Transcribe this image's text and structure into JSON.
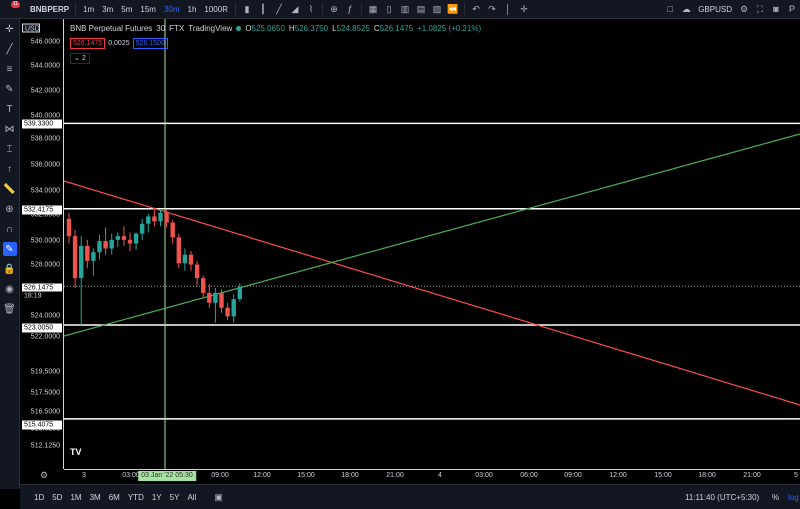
{
  "topbar": {
    "symbol": "BNBPERP",
    "notification_count": "11",
    "timeframes": [
      "1m",
      "3m",
      "5m",
      "15m",
      "30m",
      "1h",
      "1000R"
    ],
    "active_timeframe": "30m",
    "compare_symbol": "GBPUSD"
  },
  "legend": {
    "title": "BNB Perpetual Futures",
    "interval": "30",
    "exchange": "FTX",
    "source": "TradingView",
    "o_key": "O",
    "o_val": "525.0650",
    "h_key": "H",
    "h_val": "526.3750",
    "l_key": "L",
    "l_val": "524.8525",
    "c_key": "C",
    "c_val": "526.1475",
    "change": "+1.0825 (+0.21%)",
    "bid": "526.1475",
    "spread": "0.0025",
    "ask": "526.1500",
    "collapse": "2"
  },
  "currency": "USD",
  "y_ticks": [
    "546.0000",
    "544.0000",
    "542.0000",
    "540.0000",
    "538.0000",
    "536.0000",
    "534.0000",
    "532.0000",
    "530.0000",
    "528.0000",
    "526.0000",
    "524.0000",
    "522.0000",
    "519.5000",
    "517.5000",
    "516.5000",
    "513.6250",
    "512.1250"
  ],
  "y_boxes": {
    "hline1": "539.3300",
    "hline2": "532.4175",
    "price": "526.1475",
    "countdown": "18:19",
    "hline3": "523.0050",
    "hline4": "515.4075"
  },
  "x_ticks": [
    "3",
    "03:00",
    "09:00",
    "12:00",
    "15:00",
    "18:00",
    "21:00",
    "4",
    "03:00",
    "06:00",
    "09:00",
    "12:00",
    "15:00",
    "18:00",
    "21:00",
    "5"
  ],
  "crosshair_label": "03 Jan '22   05:30",
  "bottombar": {
    "ranges": [
      "1D",
      "5D",
      "1M",
      "3M",
      "6M",
      "YTD",
      "1Y",
      "5Y",
      "All"
    ],
    "clock": "11:11:40 (UTC+5:30)",
    "pct": "%",
    "log": "log"
  },
  "colors": {
    "up": "#26a69a",
    "down": "#ef5350",
    "trend_red": "#ff4d4d",
    "trend_green": "#4caf50",
    "crosshair": "#a6e3a1",
    "accent": "#2962ff"
  },
  "chart_data": {
    "type": "candlestick",
    "x_unit": "30-minute bars",
    "candles": [
      {
        "o": 531.6,
        "h": 532.1,
        "l": 529.6,
        "c": 530.2
      },
      {
        "o": 530.2,
        "h": 530.7,
        "l": 526.0,
        "c": 526.8
      },
      {
        "o": 526.8,
        "h": 530.2,
        "l": 523.0,
        "c": 529.4
      },
      {
        "o": 529.4,
        "h": 529.9,
        "l": 527.6,
        "c": 528.2
      },
      {
        "o": 528.2,
        "h": 529.2,
        "l": 527.0,
        "c": 528.9
      },
      {
        "o": 528.9,
        "h": 530.3,
        "l": 528.3,
        "c": 529.8
      },
      {
        "o": 529.8,
        "h": 530.9,
        "l": 528.7,
        "c": 529.2
      },
      {
        "o": 529.2,
        "h": 530.4,
        "l": 528.7,
        "c": 529.9
      },
      {
        "o": 529.9,
        "h": 530.5,
        "l": 529.3,
        "c": 530.2
      },
      {
        "o": 530.2,
        "h": 531.0,
        "l": 529.4,
        "c": 529.9
      },
      {
        "o": 529.9,
        "h": 530.5,
        "l": 529.0,
        "c": 529.6
      },
      {
        "o": 529.6,
        "h": 530.5,
        "l": 529.1,
        "c": 530.4
      },
      {
        "o": 530.4,
        "h": 531.6,
        "l": 529.9,
        "c": 531.2
      },
      {
        "o": 531.2,
        "h": 532.0,
        "l": 530.5,
        "c": 531.8
      },
      {
        "o": 531.8,
        "h": 532.3,
        "l": 531.0,
        "c": 531.4
      },
      {
        "o": 531.4,
        "h": 532.4,
        "l": 531.0,
        "c": 532.1
      },
      {
        "o": 532.1,
        "h": 532.4,
        "l": 530.9,
        "c": 531.3
      },
      {
        "o": 531.3,
        "h": 531.5,
        "l": 529.6,
        "c": 530.1
      },
      {
        "o": 530.1,
        "h": 530.4,
        "l": 527.6,
        "c": 528.0
      },
      {
        "o": 528.0,
        "h": 529.2,
        "l": 527.4,
        "c": 528.7
      },
      {
        "o": 528.7,
        "h": 529.0,
        "l": 527.4,
        "c": 527.9
      },
      {
        "o": 527.9,
        "h": 528.2,
        "l": 526.2,
        "c": 526.8
      },
      {
        "o": 526.8,
        "h": 527.0,
        "l": 525.2,
        "c": 525.6
      },
      {
        "o": 525.6,
        "h": 526.3,
        "l": 524.4,
        "c": 524.8
      },
      {
        "o": 524.8,
        "h": 526.0,
        "l": 523.2,
        "c": 525.6
      },
      {
        "o": 525.6,
        "h": 525.9,
        "l": 524.0,
        "c": 524.4
      },
      {
        "o": 524.4,
        "h": 524.8,
        "l": 523.4,
        "c": 523.7
      },
      {
        "o": 523.7,
        "h": 525.5,
        "l": 523.2,
        "c": 525.1
      },
      {
        "o": 525.1,
        "h": 526.4,
        "l": 524.9,
        "c": 526.1
      }
    ],
    "horizontal_lines": [
      539.33,
      532.4175,
      523.005,
      515.4075
    ],
    "last_price": 526.1475
  }
}
